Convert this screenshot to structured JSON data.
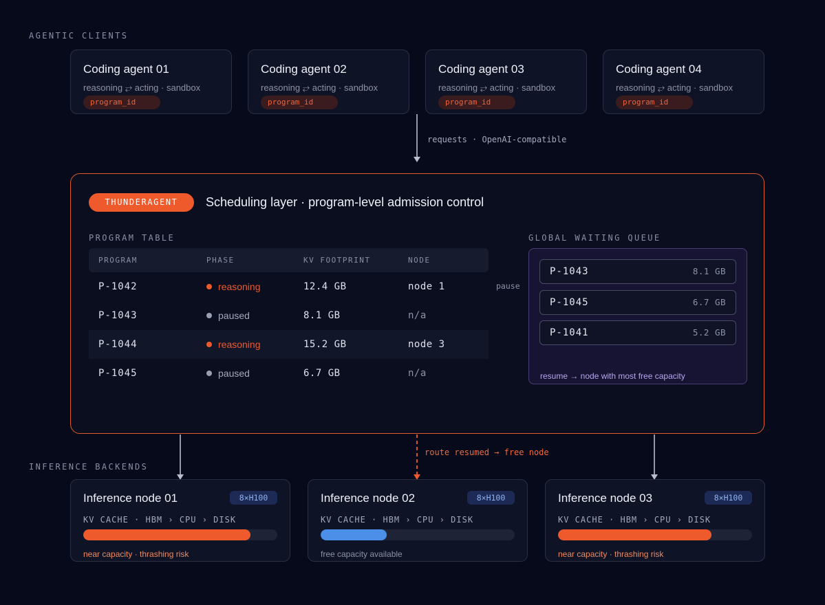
{
  "colors": {
    "accent": "#ef5a2c",
    "reasoning": "#ef5a2c",
    "paused": "#9aa0b4",
    "free": "#4b8fe8",
    "queue_border": "#4a3d7a"
  },
  "clients": {
    "label": "AGENTIC CLIENTS",
    "agents": [
      {
        "title": "Coding agent 01",
        "subtitle": "reasoning ⥂ acting · sandbox",
        "tag": "program_id"
      },
      {
        "title": "Coding agent 02",
        "subtitle": "reasoning ⥂ acting · sandbox",
        "tag": "program_id"
      },
      {
        "title": "Coding agent 03",
        "subtitle": "reasoning ⥂ acting · sandbox",
        "tag": "program_id"
      },
      {
        "title": "Coding agent 04",
        "subtitle": "reasoning ⥂ acting · sandbox",
        "tag": "program_id"
      }
    ]
  },
  "requests_label": "requests · OpenAI-compatible",
  "scheduler": {
    "brand": "THUNDERAGENT",
    "title": "Scheduling layer · program-level admission control",
    "table_label": "PROGRAM TABLE",
    "columns": [
      "PROGRAM",
      "PHASE",
      "KV FOOTPRINT",
      "NODE"
    ],
    "rows": [
      {
        "program": "P-1042",
        "phase": "reasoning",
        "kv": "12.4 GB",
        "node": "node 1"
      },
      {
        "program": "P-1043",
        "phase": "paused",
        "kv": "8.1 GB",
        "node": "n/a"
      },
      {
        "program": "P-1044",
        "phase": "reasoning",
        "kv": "15.2 GB",
        "node": "node 3"
      },
      {
        "program": "P-1045",
        "phase": "paused",
        "kv": "6.7 GB",
        "node": "n/a"
      }
    ],
    "pause_label": "pause",
    "queue_label": "GLOBAL WAITING QUEUE",
    "queue": [
      {
        "program": "P-1043",
        "kv": "8.1 GB"
      },
      {
        "program": "P-1045",
        "kv": "6.7 GB"
      },
      {
        "program": "P-1041",
        "kv": "5.2 GB"
      }
    ],
    "queue_note": "resume → node with most free capacity"
  },
  "route_label": "route resumed → free node",
  "backends": {
    "label": "INFERENCE BACKENDS",
    "nodes": [
      {
        "title": "Inference node 01",
        "gpu": "8×H100",
        "tiers": "KV CACHE · HBM › CPU › DISK",
        "usage": 0.86,
        "note": "near capacity · thrashing risk",
        "status": "hot"
      },
      {
        "title": "Inference node 02",
        "gpu": "8×H100",
        "tiers": "KV CACHE · HBM › CPU › DISK",
        "usage": 0.34,
        "note": "free capacity available",
        "status": "free"
      },
      {
        "title": "Inference node 03",
        "gpu": "8×H100",
        "tiers": "KV CACHE · HBM › CPU › DISK",
        "usage": 0.79,
        "note": "near capacity · thrashing risk",
        "status": "hot"
      }
    ]
  }
}
